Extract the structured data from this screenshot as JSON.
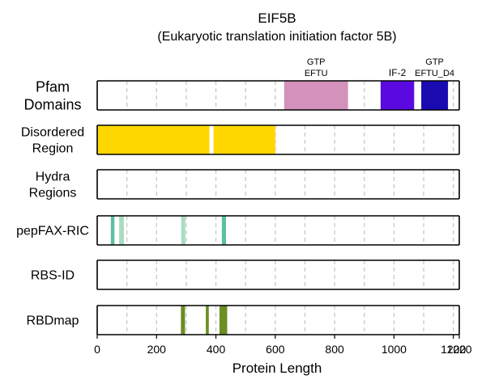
{
  "chart_data": {
    "type": "track",
    "title": "EIF5B",
    "subtitle": "(Eukaryotic translation initiation factor 5B)",
    "xlabel": "Protein Length",
    "xlim": [
      0,
      1220
    ],
    "xticks": [
      0,
      200,
      400,
      600,
      800,
      1000,
      1200,
      1220
    ],
    "xtick_labels": [
      "0",
      "200",
      "400",
      "600",
      "800",
      "1000",
      "1200",
      "1220"
    ],
    "grid_lines": [
      100,
      200,
      300,
      400,
      500,
      600,
      700,
      800,
      900,
      1000,
      1100,
      1200
    ],
    "tracks": [
      {
        "name": "Pfam Domains",
        "label_lines": [
          "Pfam",
          "Domains"
        ],
        "segments": [
          {
            "start": 630,
            "end": 845,
            "color": "#d391bb",
            "label_lines": [
              "GTP",
              "EFTU"
            ]
          },
          {
            "start": 955,
            "end": 1068,
            "color": "#5a0ae0",
            "label_lines": [
              "IF-2"
            ]
          },
          {
            "start": 1092,
            "end": 1182,
            "color": "#1a0bb0",
            "label_lines": [
              "GTP",
              "EFTU_D4"
            ]
          }
        ]
      },
      {
        "name": "Disordered Region",
        "label_lines": [
          "Disordered",
          "Region"
        ],
        "segments": [
          {
            "start": 0,
            "end": 378,
            "color": "#ffd700"
          },
          {
            "start": 392,
            "end": 600,
            "color": "#ffd700"
          }
        ]
      },
      {
        "name": "Hydra Regions",
        "label_lines": [
          "Hydra",
          "Regions"
        ],
        "segments": []
      },
      {
        "name": "pepFAX-RIC",
        "label_lines": [
          "pepFAX-RIC"
        ],
        "segments": [
          {
            "start": 46,
            "end": 58,
            "color": "#5dbfa0"
          },
          {
            "start": 74,
            "end": 90,
            "color": "#a8dcc0"
          },
          {
            "start": 283,
            "end": 297,
            "color": "#a8dcc0"
          },
          {
            "start": 420,
            "end": 434,
            "color": "#5dbfa0"
          }
        ]
      },
      {
        "name": "RBS-ID",
        "label_lines": [
          "RBS-ID"
        ],
        "segments": []
      },
      {
        "name": "RBDmap",
        "label_lines": [
          "RBDmap"
        ],
        "segments": [
          {
            "start": 282,
            "end": 296,
            "color": "#6b8e23"
          },
          {
            "start": 366,
            "end": 376,
            "color": "#6b8e23"
          },
          {
            "start": 412,
            "end": 438,
            "color": "#6b8e23"
          }
        ]
      }
    ]
  }
}
